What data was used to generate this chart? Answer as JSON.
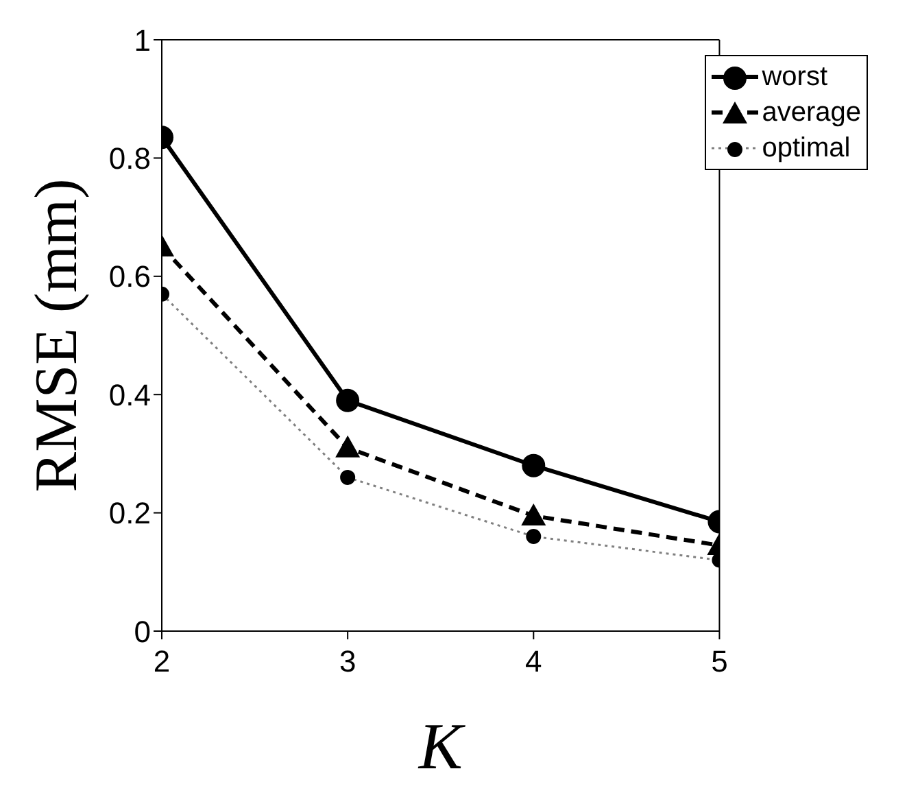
{
  "chart_data": {
    "type": "line",
    "xlabel": "K",
    "ylabel": "RMSE (mm)",
    "x": [
      2,
      3,
      4,
      5
    ],
    "xlim": [
      2,
      5
    ],
    "xticks": [
      2,
      3,
      4,
      5
    ],
    "ylim": [
      0,
      1
    ],
    "yticks": [
      0,
      {
        "value": 0.2,
        "label": "0.2"
      },
      {
        "value": 0.4,
        "label": "0.4"
      },
      {
        "value": 0.6,
        "label": "0.6"
      },
      {
        "value": 0.8,
        "label": "0.8"
      },
      1
    ],
    "legend": "top right",
    "series": [
      {
        "name": "worst",
        "color": "#000000",
        "values": [
          0.835,
          0.39,
          0.28,
          0.185
        ],
        "marker": "circle",
        "line_style": "solid"
      },
      {
        "name": "average",
        "color": "#000000",
        "values": [
          0.65,
          0.31,
          0.195,
          0.145
        ],
        "marker": "triangle",
        "line_style": "dashed"
      },
      {
        "name": "optimal",
        "color": "#808080",
        "values": [
          0.57,
          0.26,
          0.16,
          0.12
        ],
        "marker": "circle",
        "line_style": "dotted"
      }
    ]
  }
}
